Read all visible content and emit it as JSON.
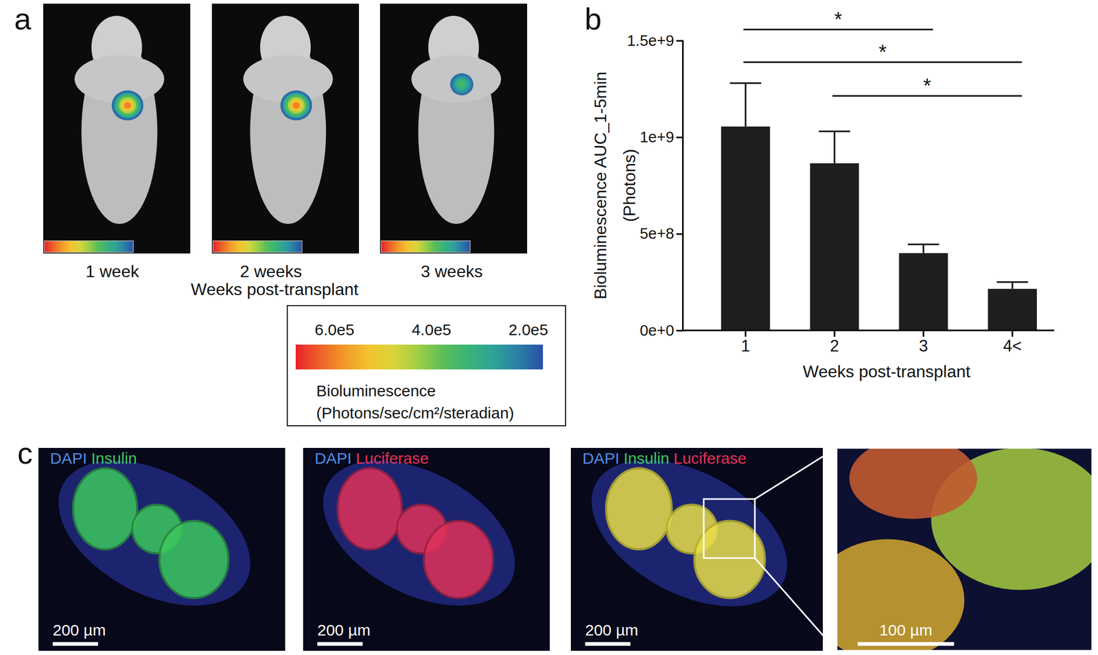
{
  "chart_data": {
    "type": "bar",
    "categories": [
      "1",
      "2",
      "3",
      "4<"
    ],
    "values": [
      1055000000,
      865000000,
      400000000,
      215000000
    ],
    "errors": [
      225000000,
      165000000,
      45000000,
      35000000
    ],
    "color": "#1e1e1e",
    "x_label": "Weeks post-transplant",
    "y_label": [
      "Bioluminescence AUC_1-5min",
      "(Photons)"
    ],
    "ylim": [
      0,
      1500000000
    ],
    "yticks": [
      {
        "value": 0,
        "label": "0e+0"
      },
      {
        "value": 500000000,
        "label": "5e+8"
      },
      {
        "value": 1000000000,
        "label": "1e+9"
      },
      {
        "value": 1500000000,
        "label": "1.5e+9"
      }
    ],
    "grid": false,
    "annotations": [
      {
        "from": "1",
        "to": "3",
        "text": "*"
      },
      {
        "from": "1",
        "to": "4<",
        "text": "*"
      },
      {
        "from": "2",
        "to": "4<",
        "text": "*"
      }
    ]
  },
  "panel_labels": [
    "a",
    "b",
    "c"
  ],
  "panel_a": {
    "images": [
      {
        "label": "1 week",
        "peak_signal": 600000
      },
      {
        "label": "2 weeks",
        "peak_signal": 600000
      },
      {
        "label": "3 weeks",
        "peak_signal": 350000
      }
    ],
    "x_label": "Weeks post-transplant",
    "colorbar": {
      "range": [
        680000,
        170000
      ],
      "ticks": [
        {
          "value": 600000,
          "label": "6.0e5"
        },
        {
          "value": 400000,
          "label": "4.0e5"
        },
        {
          "value": 200000,
          "label": "2.0e5"
        }
      ],
      "title": [
        "Bioluminescence",
        "(Photons/sec/cm²/steradian)"
      ]
    }
  },
  "panel_c": {
    "images": [
      {
        "channels": [
          {
            "text": "DAPI",
            "color": "#4f8fe6"
          },
          {
            "text": "Insulin",
            "color": "#3cc85e"
          }
        ],
        "scale_bar": "200 µm"
      },
      {
        "channels": [
          {
            "text": "DAPI",
            "color": "#4f8fe6"
          },
          {
            "text": "Luciferase",
            "color": "#e8325a"
          }
        ],
        "scale_bar": "200 µm"
      },
      {
        "channels": [
          {
            "text": "DAPI",
            "color": "#4f8fe6"
          },
          {
            "text": "Insulin",
            "color": "#3cc85e"
          },
          {
            "text": "Luciferase",
            "color": "#e8325a"
          }
        ],
        "scale_bar": "200 µm"
      },
      {
        "channels": [],
        "scale_bar": "100 µm"
      }
    ]
  }
}
